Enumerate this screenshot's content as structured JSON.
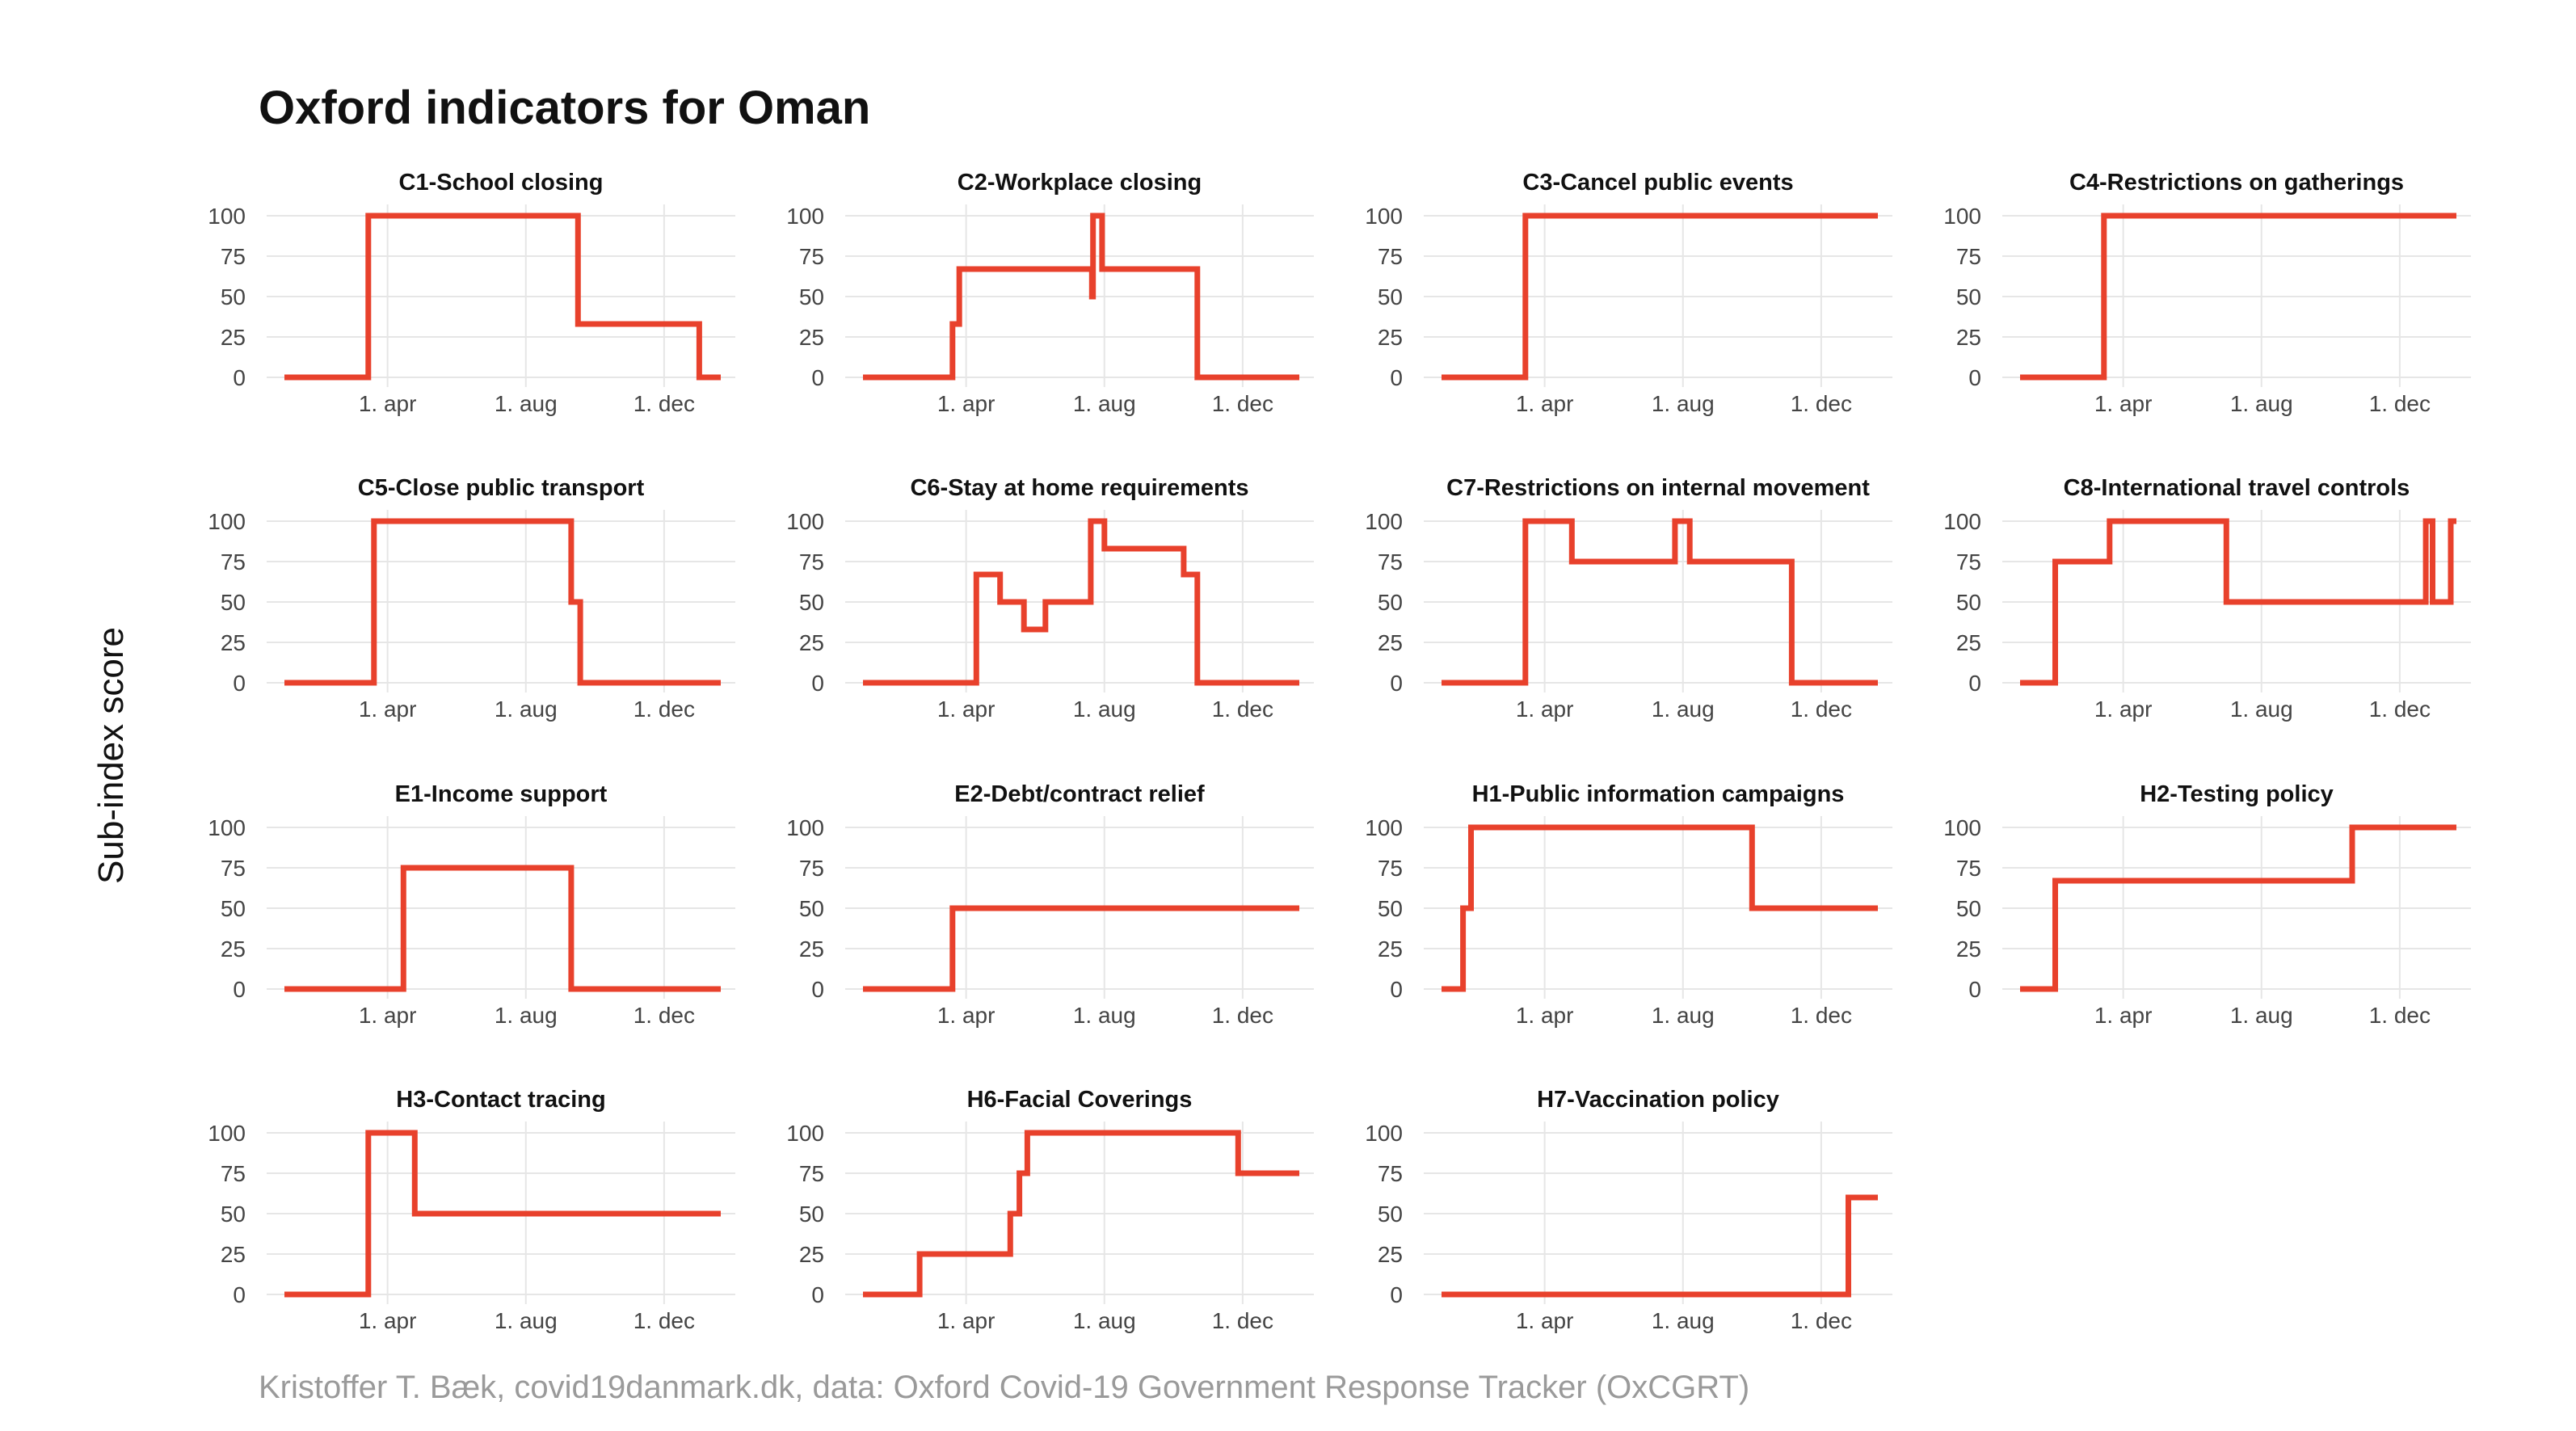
{
  "title": "Oxford indicators for Oman",
  "ylabel": "Sub-index score",
  "caption": "Kristoffer T. Bæk, covid19danmark.dk, data: Oxford Covid-19 Government Response Tracker (OxCGRT)",
  "colors": {
    "line": "#e8412c",
    "grid": "#e6e6e6",
    "text": "#111111",
    "tick": "#444444",
    "caption": "#9a9a9a"
  },
  "chart_data": {
    "type": "line",
    "x_unit": "date",
    "xlim": [
      "2020-01-01",
      "2021-01-20"
    ],
    "ylim": [
      0,
      100
    ],
    "y_ticks": [
      0,
      25,
      50,
      75,
      100
    ],
    "x_ticks": [
      {
        "date": "2020-04-01",
        "label": "1. apr"
      },
      {
        "date": "2020-08-01",
        "label": "1. aug"
      },
      {
        "date": "2020-12-01",
        "label": "1. dec"
      }
    ],
    "grid": true,
    "panels": [
      {
        "title": "C1-School closing",
        "steps": [
          [
            "2020-01-01",
            0
          ],
          [
            "2020-03-15",
            100
          ],
          [
            "2020-09-16",
            33
          ],
          [
            "2021-01-01",
            0
          ],
          [
            "2021-01-20",
            0
          ]
        ]
      },
      {
        "title": "C2-Workplace closing",
        "steps": [
          [
            "2020-01-01",
            0
          ],
          [
            "2020-03-20",
            33
          ],
          [
            "2020-03-26",
            67
          ],
          [
            "2020-07-21",
            50
          ],
          [
            "2020-07-22",
            100
          ],
          [
            "2020-07-30",
            67
          ],
          [
            "2020-10-22",
            0
          ],
          [
            "2021-01-20",
            0
          ]
        ]
      },
      {
        "title": "C3-Cancel public events",
        "steps": [
          [
            "2020-01-01",
            0
          ],
          [
            "2020-03-15",
            100
          ],
          [
            "2021-01-20",
            100
          ]
        ]
      },
      {
        "title": "C4-Restrictions on gatherings",
        "steps": [
          [
            "2020-01-01",
            0
          ],
          [
            "2020-03-15",
            100
          ],
          [
            "2021-01-20",
            100
          ]
        ]
      },
      {
        "title": "C5-Close public transport",
        "steps": [
          [
            "2020-01-01",
            0
          ],
          [
            "2020-03-20",
            100
          ],
          [
            "2020-09-10",
            50
          ],
          [
            "2020-09-18",
            0
          ],
          [
            "2021-01-20",
            0
          ]
        ]
      },
      {
        "title": "C6-Stay at home requirements",
        "steps": [
          [
            "2020-01-01",
            0
          ],
          [
            "2020-04-10",
            67
          ],
          [
            "2020-05-01",
            50
          ],
          [
            "2020-05-22",
            33
          ],
          [
            "2020-06-10",
            50
          ],
          [
            "2020-07-20",
            100
          ],
          [
            "2020-08-01",
            83
          ],
          [
            "2020-10-10",
            67
          ],
          [
            "2020-10-22",
            0
          ],
          [
            "2021-01-20",
            0
          ]
        ]
      },
      {
        "title": "C7-Restrictions on internal movement",
        "steps": [
          [
            "2020-01-01",
            0
          ],
          [
            "2020-03-15",
            100
          ],
          [
            "2020-04-25",
            75
          ],
          [
            "2020-07-25",
            100
          ],
          [
            "2020-08-07",
            75
          ],
          [
            "2020-11-05",
            0
          ],
          [
            "2021-01-20",
            0
          ]
        ]
      },
      {
        "title": "C8-International travel controls",
        "steps": [
          [
            "2020-01-01",
            0
          ],
          [
            "2020-02-01",
            75
          ],
          [
            "2020-03-20",
            100
          ],
          [
            "2020-07-01",
            50
          ],
          [
            "2020-12-24",
            100
          ],
          [
            "2020-12-30",
            50
          ],
          [
            "2021-01-15",
            100
          ],
          [
            "2021-01-20",
            100
          ]
        ]
      },
      {
        "title": "E1-Income support",
        "steps": [
          [
            "2020-01-01",
            0
          ],
          [
            "2020-04-15",
            75
          ],
          [
            "2020-09-10",
            0
          ],
          [
            "2021-01-20",
            0
          ]
        ]
      },
      {
        "title": "E2-Debt/contract relief",
        "steps": [
          [
            "2020-01-01",
            0
          ],
          [
            "2020-03-20",
            50
          ],
          [
            "2021-01-20",
            50
          ]
        ]
      },
      {
        "title": "H1-Public information campaigns",
        "steps": [
          [
            "2020-01-01",
            0
          ],
          [
            "2020-01-20",
            50
          ],
          [
            "2020-01-27",
            100
          ],
          [
            "2020-10-01",
            50
          ],
          [
            "2021-01-20",
            50
          ]
        ]
      },
      {
        "title": "H2-Testing policy",
        "steps": [
          [
            "2020-01-01",
            0
          ],
          [
            "2020-02-01",
            67
          ],
          [
            "2020-10-20",
            100
          ],
          [
            "2021-01-20",
            100
          ]
        ]
      },
      {
        "title": "H3-Contact tracing",
        "steps": [
          [
            "2020-01-01",
            0
          ],
          [
            "2020-03-15",
            100
          ],
          [
            "2020-04-25",
            50
          ],
          [
            "2021-01-20",
            50
          ]
        ]
      },
      {
        "title": "H6-Facial Coverings",
        "steps": [
          [
            "2020-01-01",
            0
          ],
          [
            "2020-02-20",
            25
          ],
          [
            "2020-05-10",
            50
          ],
          [
            "2020-05-18",
            75
          ],
          [
            "2020-05-25",
            100
          ],
          [
            "2020-11-27",
            75
          ],
          [
            "2021-01-20",
            75
          ]
        ]
      },
      {
        "title": "H7-Vaccination policy",
        "steps": [
          [
            "2020-01-01",
            0
          ],
          [
            "2020-12-25",
            60
          ],
          [
            "2021-01-20",
            60
          ]
        ]
      }
    ]
  }
}
